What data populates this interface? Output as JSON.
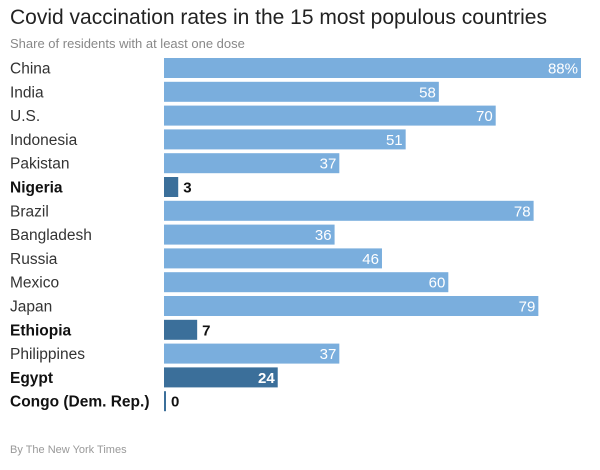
{
  "header": {
    "title": "Covid vaccination rates in the 15 most populous countries",
    "subtitle": "Share of residents with at least one dose"
  },
  "footer": {
    "credit": "By The New York Times"
  },
  "colors": {
    "normal": "#7aaedd",
    "highlight": "#3b6f9a"
  },
  "chart_data": {
    "type": "bar",
    "orientation": "horizontal",
    "title": "Covid vaccination rates in the 15 most populous countries",
    "subtitle": "Share of residents with at least one dose",
    "xlabel": "",
    "ylabel": "",
    "xlim": [
      0,
      100
    ],
    "grid": false,
    "categories": [
      "China",
      "India",
      "U.S.",
      "Indonesia",
      "Pakistan",
      "Nigeria",
      "Brazil",
      "Bangladesh",
      "Russia",
      "Mexico",
      "Japan",
      "Ethiopia",
      "Philippines",
      "Egypt",
      "Congo (Dem. Rep.)"
    ],
    "values": [
      88,
      58,
      70,
      51,
      37,
      3,
      78,
      36,
      46,
      60,
      79,
      7,
      37,
      24,
      0
    ],
    "value_labels": [
      "88%",
      "58",
      "70",
      "51",
      "37",
      "3",
      "78",
      "36",
      "46",
      "60",
      "79",
      "7",
      "37",
      "24",
      "0"
    ],
    "highlighted": [
      "Nigeria",
      "Ethiopia",
      "Egypt",
      "Congo (Dem. Rep.)"
    ]
  }
}
